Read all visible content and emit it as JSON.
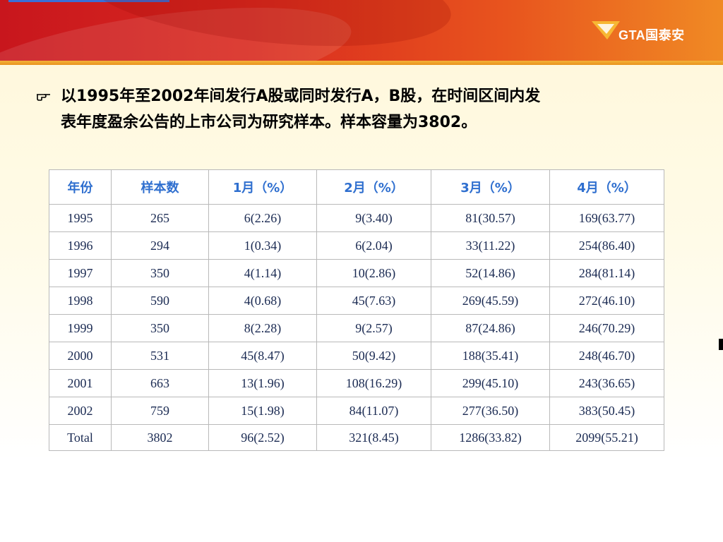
{
  "header": {
    "logo_text": "GTA国泰安",
    "colors": {
      "banner_start": "#c8161d",
      "banner_end": "#f08a24",
      "gold": "#f3b33a"
    }
  },
  "body": {
    "bullet_icon": "pointing-hand-icon",
    "text_line1": "以1995年至2002年间发行A股或同时发行A，B股，在时间区间内发",
    "text_line2": "表年度盈余公告的上市公司为研究样本。样本容量为3802。"
  },
  "table": {
    "columns": [
      "年份",
      "样本数",
      "1月（%）",
      "2月（%）",
      "3月（%）",
      "4月（%）"
    ],
    "rows": [
      [
        "1995",
        "265",
        "6(2.26)",
        "9(3.40)",
        "81(30.57)",
        "169(63.77)"
      ],
      [
        "1996",
        "294",
        "1(0.34)",
        "6(2.04)",
        "33(11.22)",
        "254(86.40)"
      ],
      [
        "1997",
        "350",
        "4(1.14)",
        "10(2.86)",
        "52(14.86)",
        "284(81.14)"
      ],
      [
        "1998",
        "590",
        "4(0.68)",
        "45(7.63)",
        "269(45.59)",
        "272(46.10)"
      ],
      [
        "1999",
        "350",
        "8(2.28)",
        "9(2.57)",
        "87(24.86)",
        "246(70.29)"
      ],
      [
        "2000",
        "531",
        "45(8.47)",
        "50(9.42)",
        "188(35.41)",
        "248(46.70)"
      ],
      [
        "2001",
        "663",
        "13(1.96)",
        "108(16.29)",
        "299(45.10)",
        "243(36.65)"
      ],
      [
        "2002",
        "759",
        "15(1.98)",
        "84(11.07)",
        "277(36.50)",
        "383(50.45)"
      ],
      [
        "Total",
        "3802",
        "96(2.52)",
        "321(8.45)",
        "1286(33.82)",
        "2099(55.21)"
      ]
    ],
    "header_color": "#2f6fcf",
    "cell_color": "#1a2a52"
  }
}
